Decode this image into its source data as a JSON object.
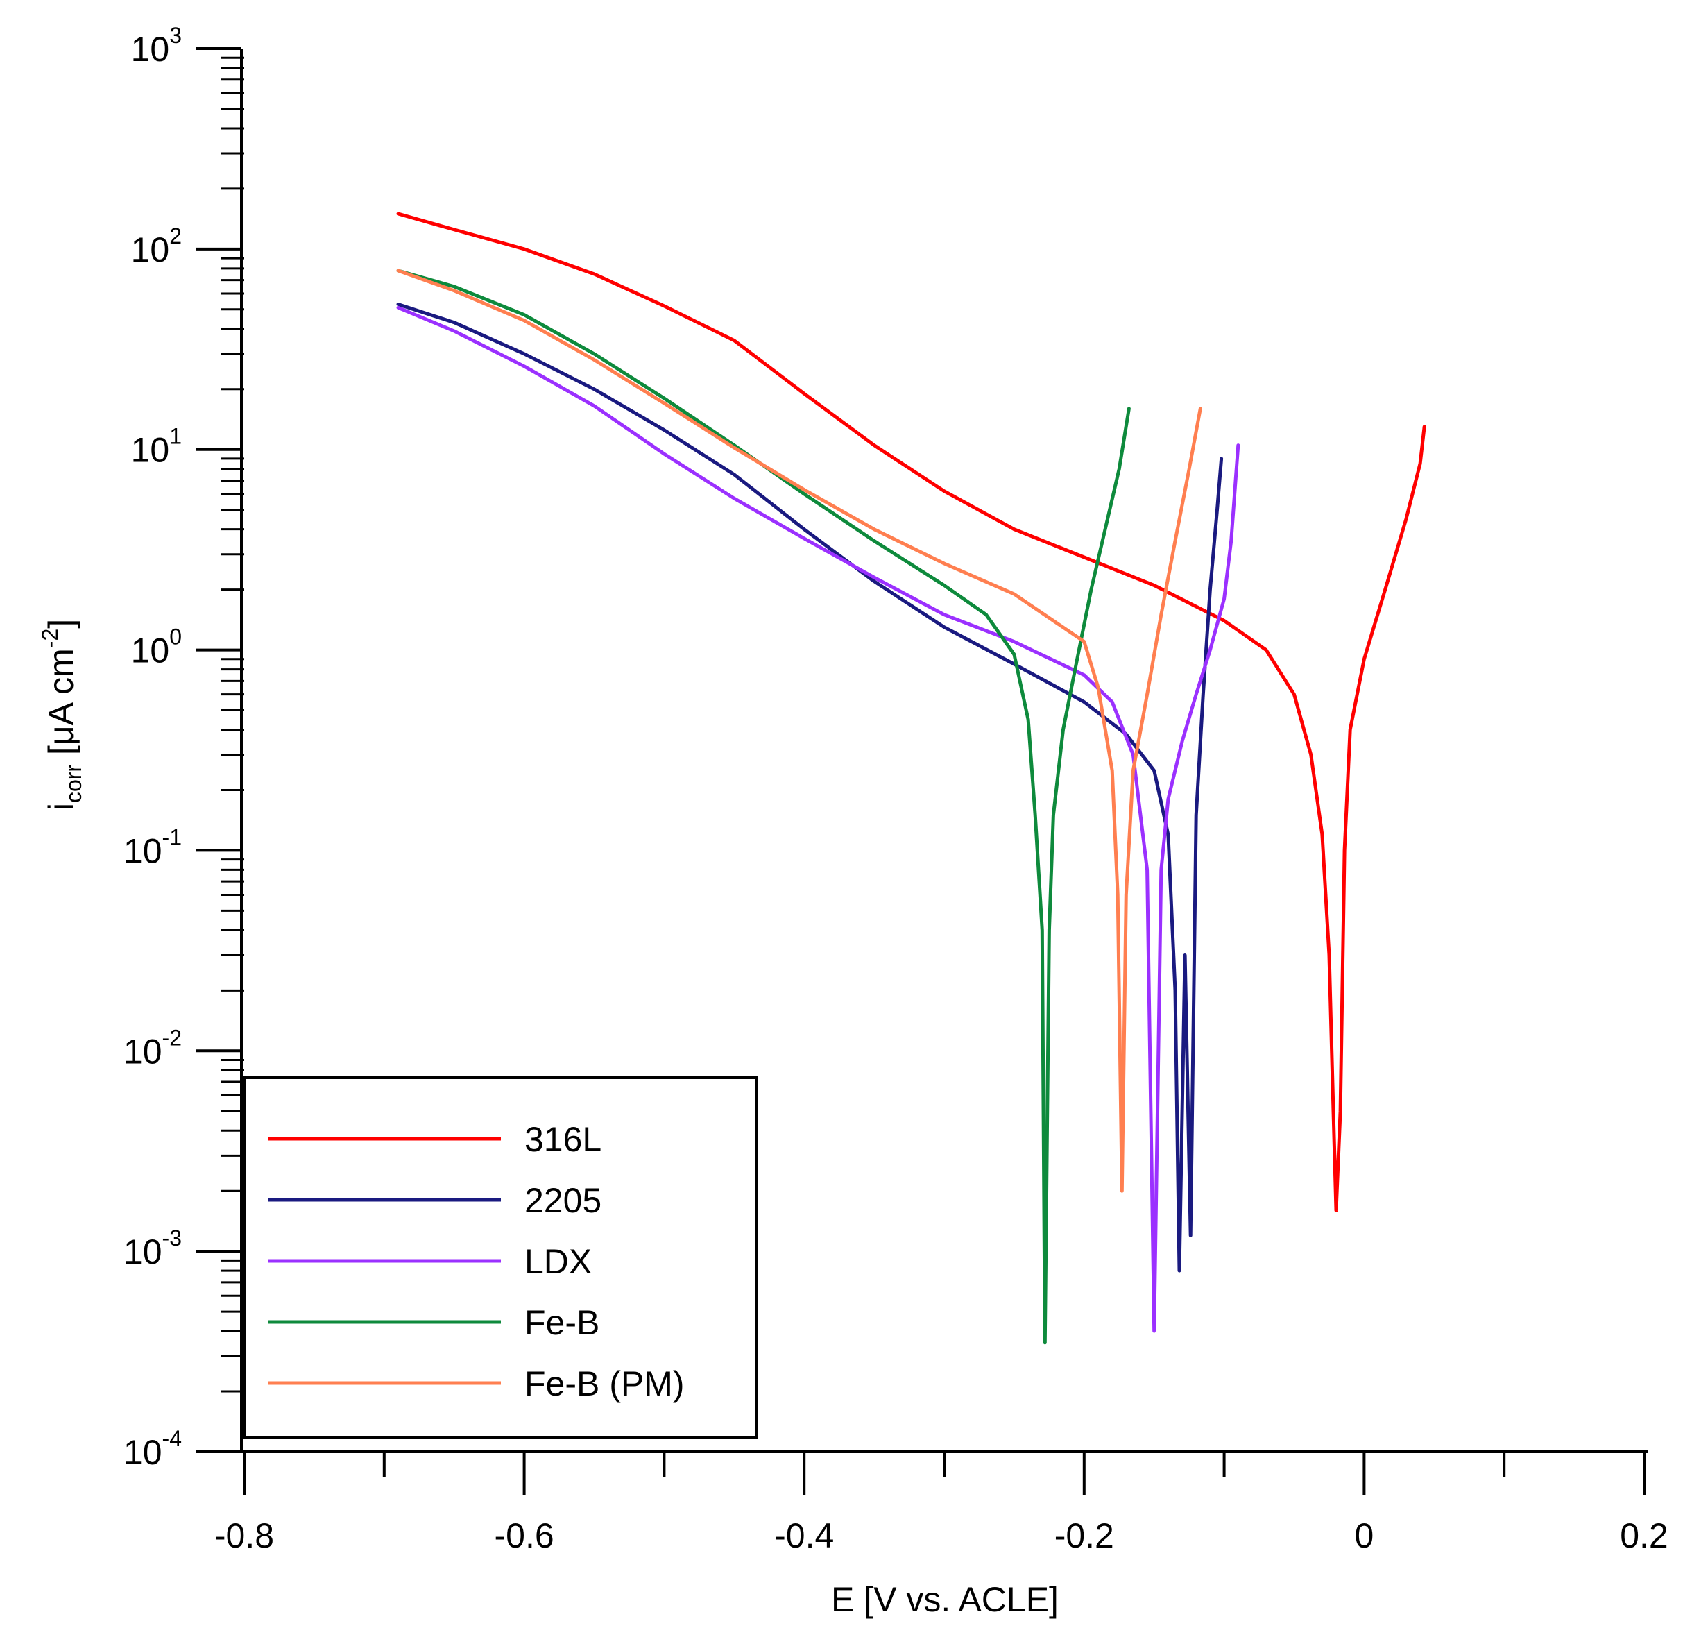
{
  "chart_data": {
    "type": "line",
    "title": "",
    "xlabel": "E [V vs. ACLE]",
    "ylabel": {
      "main": "i",
      "subscript": "corr",
      "unit_prefix": " [μA cm",
      "unit_exponent": "-2",
      "unit_suffix": "]"
    },
    "x_scale": "linear",
    "y_scale": "log",
    "xlim": [
      -0.83,
      0.2
    ],
    "ylim_exponents": [
      -4,
      3
    ],
    "x_ticks": [
      {
        "value": -0.8,
        "label": "-0.8"
      },
      {
        "value": -0.6,
        "label": "-0.6"
      },
      {
        "value": -0.4,
        "label": "-0.4"
      },
      {
        "value": -0.2,
        "label": "-0.2"
      },
      {
        "value": 0,
        "label": "0"
      },
      {
        "value": 0.2,
        "label": "0.2"
      }
    ],
    "x_minor_ticks": [
      -0.7,
      -0.5,
      -0.3,
      -0.1,
      0.1
    ],
    "y_ticks": [
      {
        "exponent": -4,
        "base": "10",
        "sup": "-4"
      },
      {
        "exponent": -3,
        "base": "10",
        "sup": "-3"
      },
      {
        "exponent": -2,
        "base": "10",
        "sup": "-2"
      },
      {
        "exponent": -1,
        "base": "10",
        "sup": "-1"
      },
      {
        "exponent": 0,
        "base": "10",
        "sup": "0"
      },
      {
        "exponent": 1,
        "base": "10",
        "sup": "1"
      },
      {
        "exponent": 2,
        "base": "10",
        "sup": "2"
      },
      {
        "exponent": 3,
        "base": "10",
        "sup": "3"
      }
    ],
    "legend": {
      "position": "bottom-left",
      "frame": true
    },
    "series": [
      {
        "name": "316L",
        "color": "#FF0000",
        "points": [
          [
            -0.69,
            150
          ],
          [
            -0.65,
            125
          ],
          [
            -0.6,
            100
          ],
          [
            -0.55,
            75
          ],
          [
            -0.5,
            52
          ],
          [
            -0.45,
            35
          ],
          [
            -0.4,
            19
          ],
          [
            -0.35,
            10.5
          ],
          [
            -0.3,
            6.2
          ],
          [
            -0.25,
            4.0
          ],
          [
            -0.2,
            2.9
          ],
          [
            -0.15,
            2.1
          ],
          [
            -0.1,
            1.4
          ],
          [
            -0.07,
            1.0
          ],
          [
            -0.05,
            0.6
          ],
          [
            -0.038,
            0.3
          ],
          [
            -0.03,
            0.12
          ],
          [
            -0.025,
            0.03
          ],
          [
            -0.022,
            0.005
          ],
          [
            -0.02,
            0.0016
          ],
          [
            -0.017,
            0.005
          ],
          [
            -0.014,
            0.1
          ],
          [
            -0.01,
            0.4
          ],
          [
            0.0,
            0.9
          ],
          [
            0.015,
            2.0
          ],
          [
            0.03,
            4.5
          ],
          [
            0.04,
            8.5
          ],
          [
            0.043,
            13
          ]
        ]
      },
      {
        "name": "2205",
        "color": "#1A1A80",
        "points": [
          [
            -0.69,
            53
          ],
          [
            -0.65,
            43
          ],
          [
            -0.6,
            30
          ],
          [
            -0.55,
            20
          ],
          [
            -0.5,
            12.5
          ],
          [
            -0.45,
            7.5
          ],
          [
            -0.4,
            4.0
          ],
          [
            -0.35,
            2.2
          ],
          [
            -0.3,
            1.3
          ],
          [
            -0.25,
            0.85
          ],
          [
            -0.2,
            0.55
          ],
          [
            -0.17,
            0.38
          ],
          [
            -0.15,
            0.25
          ],
          [
            -0.14,
            0.12
          ],
          [
            -0.135,
            0.02
          ],
          [
            -0.132,
            0.0008
          ],
          [
            -0.128,
            0.03
          ],
          [
            -0.124,
            0.0012
          ],
          [
            -0.12,
            0.15
          ],
          [
            -0.115,
            0.6
          ],
          [
            -0.11,
            2.0
          ],
          [
            -0.105,
            5.0
          ],
          [
            -0.102,
            9.0
          ]
        ]
      },
      {
        "name": "LDX",
        "color": "#9B30FF",
        "points": [
          [
            -0.69,
            51
          ],
          [
            -0.65,
            39
          ],
          [
            -0.6,
            26
          ],
          [
            -0.55,
            16.5
          ],
          [
            -0.5,
            9.5
          ],
          [
            -0.45,
            5.7
          ],
          [
            -0.4,
            3.6
          ],
          [
            -0.35,
            2.3
          ],
          [
            -0.3,
            1.5
          ],
          [
            -0.25,
            1.1
          ],
          [
            -0.2,
            0.75
          ],
          [
            -0.18,
            0.55
          ],
          [
            -0.165,
            0.3
          ],
          [
            -0.155,
            0.08
          ],
          [
            -0.15,
            0.0004
          ],
          [
            -0.145,
            0.08
          ],
          [
            -0.14,
            0.18
          ],
          [
            -0.13,
            0.35
          ],
          [
            -0.12,
            0.6
          ],
          [
            -0.11,
            1.0
          ],
          [
            -0.1,
            1.8
          ],
          [
            -0.095,
            3.5
          ],
          [
            -0.09,
            10.5
          ]
        ]
      },
      {
        "name": "Fe-B",
        "color": "#0E8A3C",
        "points": [
          [
            -0.69,
            78
          ],
          [
            -0.65,
            65
          ],
          [
            -0.6,
            47
          ],
          [
            -0.55,
            30
          ],
          [
            -0.5,
            18
          ],
          [
            -0.45,
            10.5
          ],
          [
            -0.4,
            6.0
          ],
          [
            -0.35,
            3.5
          ],
          [
            -0.3,
            2.1
          ],
          [
            -0.27,
            1.5
          ],
          [
            -0.25,
            0.95
          ],
          [
            -0.24,
            0.45
          ],
          [
            -0.235,
            0.15
          ],
          [
            -0.23,
            0.04
          ],
          [
            -0.228,
            0.00035
          ],
          [
            -0.225,
            0.04
          ],
          [
            -0.222,
            0.15
          ],
          [
            -0.215,
            0.4
          ],
          [
            -0.205,
            0.9
          ],
          [
            -0.195,
            2.0
          ],
          [
            -0.185,
            4.0
          ],
          [
            -0.175,
            8.0
          ],
          [
            -0.168,
            16
          ]
        ]
      },
      {
        "name": "Fe-B (PM)",
        "color": "#FF7F50",
        "points": [
          [
            -0.69,
            78
          ],
          [
            -0.65,
            62
          ],
          [
            -0.6,
            44
          ],
          [
            -0.55,
            28
          ],
          [
            -0.5,
            17
          ],
          [
            -0.45,
            10.2
          ],
          [
            -0.4,
            6.3
          ],
          [
            -0.35,
            4.0
          ],
          [
            -0.3,
            2.7
          ],
          [
            -0.25,
            1.9
          ],
          [
            -0.2,
            1.1
          ],
          [
            -0.19,
            0.65
          ],
          [
            -0.18,
            0.25
          ],
          [
            -0.176,
            0.06
          ],
          [
            -0.173,
            0.002
          ],
          [
            -0.17,
            0.06
          ],
          [
            -0.165,
            0.25
          ],
          [
            -0.155,
            0.6
          ],
          [
            -0.145,
            1.5
          ],
          [
            -0.135,
            3.5
          ],
          [
            -0.125,
            8.0
          ],
          [
            -0.117,
            16
          ]
        ]
      }
    ]
  }
}
